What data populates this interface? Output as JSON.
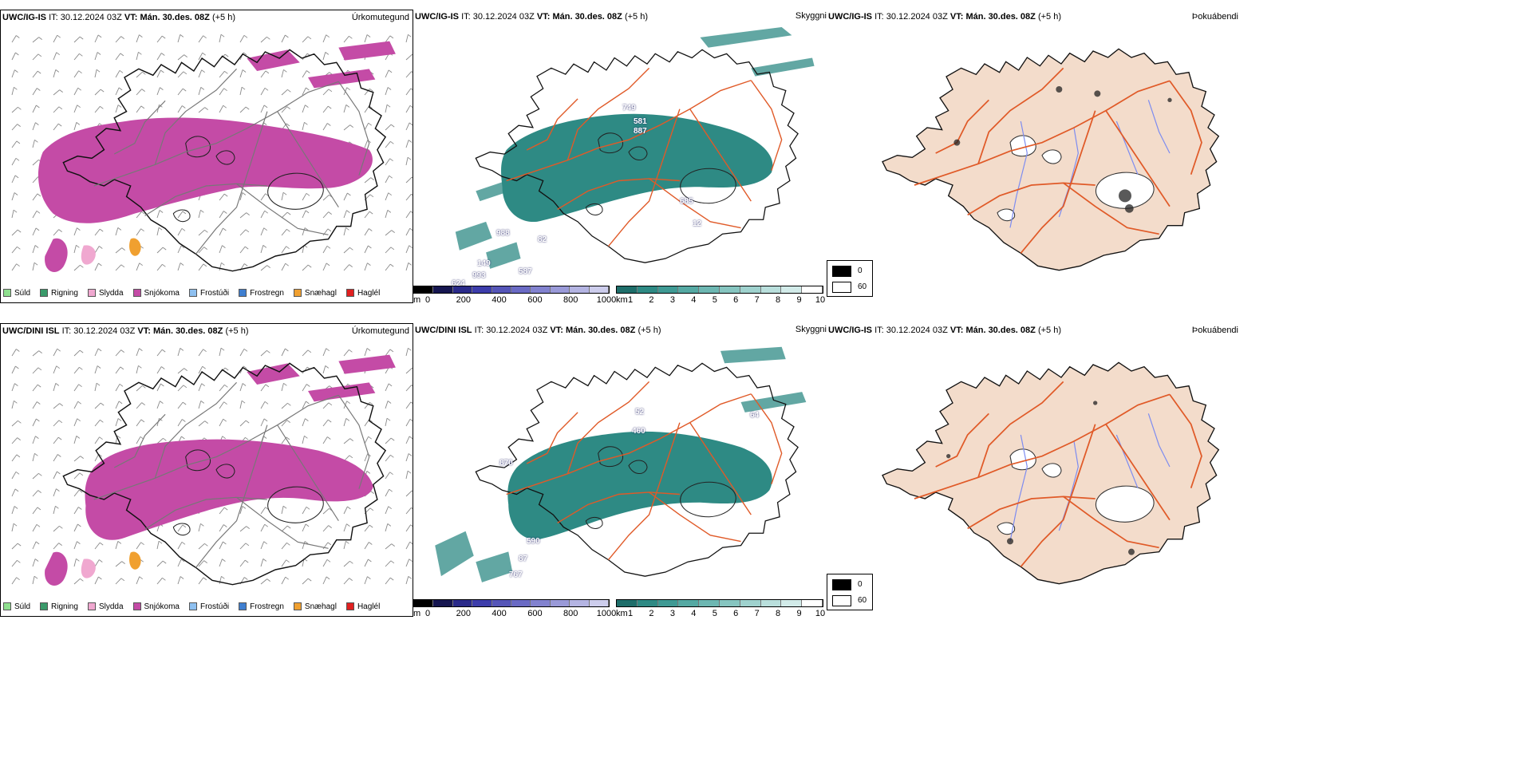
{
  "rows": [
    {
      "precip": {
        "model": "UWC/IG-IS",
        "it_label": "IT:",
        "it_value": "30.12.2024 03Z",
        "vt_label": "VT:",
        "vt_value": "Mán. 30.des. 08Z",
        "lead": "(+5 h)",
        "title": "Úrkomutegund"
      },
      "vis": {
        "model": "UWC/IG-IS",
        "it_label": "IT:",
        "it_value": "30.12.2024 03Z",
        "vt_label": "VT:",
        "vt_value": "Mán. 30.des. 08Z",
        "lead": "(+5 h)",
        "title": "Skyggni",
        "labels": [
          "749",
          "581",
          "887",
          "685",
          "12",
          "988",
          "82",
          "149",
          "993",
          "587",
          "624"
        ]
      },
      "fog": {
        "model": "UWC/IG-IS",
        "it_label": "IT:",
        "it_value": "30.12.2024 03Z",
        "vt_label": "VT:",
        "vt_value": "Mán. 30.des. 08Z",
        "lead": "(+5 h)",
        "title": "Þokuábendi"
      }
    },
    {
      "precip": {
        "model": "UWC/DINI ISL",
        "it_label": "IT:",
        "it_value": "30.12.2024 03Z",
        "vt_label": "VT:",
        "vt_value": "Mán. 30.des. 08Z",
        "lead": "(+5 h)",
        "title": "Úrkomutegund"
      },
      "vis": {
        "model": "UWC/DINI ISL",
        "it_label": "IT:",
        "it_value": "30.12.2024 03Z",
        "vt_label": "VT:",
        "vt_value": "Mán. 30.des. 08Z",
        "lead": "(+5 h)",
        "title": "Skyggni",
        "labels": [
          "52",
          "460",
          "870",
          "64",
          "590",
          "87",
          "767"
        ]
      },
      "fog": {
        "model": "UWC/IG-IS",
        "it_label": "IT:",
        "it_value": "30.12.2024 03Z",
        "vt_label": "VT:",
        "vt_value": "Mán. 30.des. 08Z",
        "lead": "(+5 h)",
        "title": "Þokuábendi"
      }
    }
  ],
  "precip_legend": [
    {
      "label": "Súld",
      "color": "#8fe08f"
    },
    {
      "label": "Rigning",
      "color": "#3a9a6a"
    },
    {
      "label": "Slydda",
      "color": "#f0a8d0"
    },
    {
      "label": "Snjókoma",
      "color": "#c44ba6"
    },
    {
      "label": "Frostúði",
      "color": "#8ec0f0"
    },
    {
      "label": "Frostregn",
      "color": "#3f7fd0"
    },
    {
      "label": "Snæhagl",
      "color": "#f0a030"
    },
    {
      "label": "Haglél",
      "color": "#e02020"
    }
  ],
  "ceiling_scale": {
    "unit": "m",
    "ticks": [
      "0",
      "200",
      "400",
      "600",
      "800",
      "1000"
    ]
  },
  "visibility_scale": {
    "unit": "km",
    "ticks": [
      "1",
      "2",
      "3",
      "4",
      "5",
      "6",
      "7",
      "8",
      "9",
      "10"
    ]
  },
  "fog_legend": [
    {
      "label": "0",
      "color": "#000000"
    },
    {
      "label": "60",
      "color": "#ffffff"
    }
  ],
  "colors": {
    "snow": "#c44ba6",
    "vis_fill": "#2e8a84",
    "fog_fill": "#f3dccb",
    "road": "#e05a28",
    "coast": "#222222",
    "river": "#7d8cf0"
  }
}
